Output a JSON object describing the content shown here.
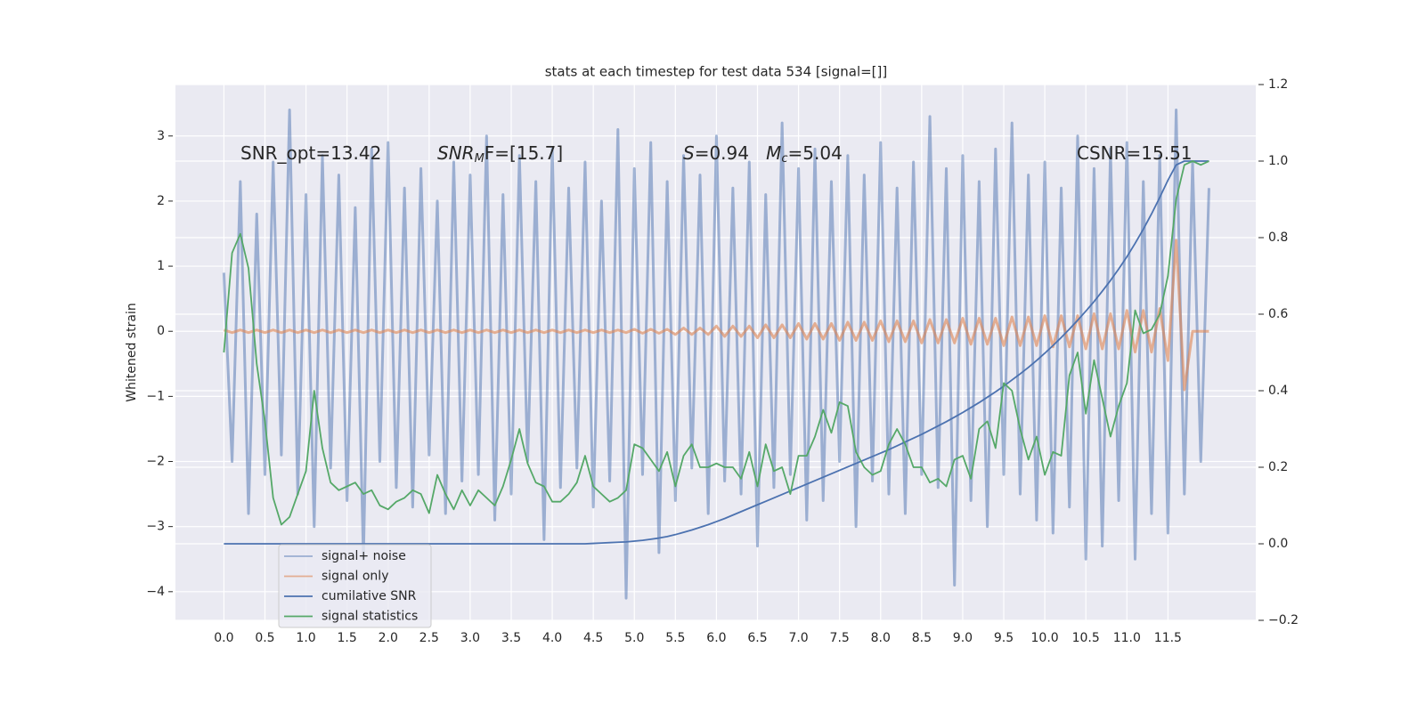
{
  "chart_data": {
    "type": "line",
    "title": "stats at each timestep for test data 534 [signal=[]]",
    "ylabel": "Whitened strain",
    "annotations": [
      [
        "SNR_opt=13.42"
      ],
      [
        "SNR",
        "M",
        "F=[15.7]"
      ],
      [
        "S",
        "=0.94   ",
        "M",
        "c",
        "=5.04"
      ],
      [
        "CSNR=15.51"
      ]
    ],
    "grid": true,
    "legend": "lower left",
    "background": "#eaeaf2",
    "xlim": [
      -0.59,
      12.57
    ],
    "ylim": [
      -4.44,
      3.79
    ],
    "y2lim": [
      -0.2,
      1.2
    ],
    "xticks": [
      {
        "value": 0,
        "label": "0.0"
      },
      0.5,
      {
        "value": 1,
        "label": "1.0"
      },
      1.5,
      {
        "value": 2,
        "label": "2.0"
      },
      2.5,
      {
        "value": 3,
        "label": "3.0"
      },
      3.5,
      {
        "value": 4,
        "label": "4.0"
      },
      4.5,
      {
        "value": 5,
        "label": "5.0"
      },
      5.5,
      {
        "value": 6,
        "label": "6.0"
      },
      6.5,
      {
        "value": 7,
        "label": "7.0"
      },
      7.5,
      {
        "value": 8,
        "label": "8.0"
      },
      8.5,
      {
        "value": 9,
        "label": "9.0"
      },
      9.5,
      {
        "value": 10,
        "label": "10.0"
      },
      10.5,
      {
        "value": 11,
        "label": "11.0"
      },
      11.5
    ],
    "yticks": [
      {
        "value": -4,
        "label": "−4"
      },
      {
        "value": -3,
        "label": "−3"
      },
      {
        "value": -2,
        "label": "−2"
      },
      {
        "value": -1,
        "label": "−1"
      },
      0,
      1,
      2,
      3
    ],
    "y2ticks": [
      {
        "value": -0.2,
        "label": "−0.2"
      },
      {
        "value": 0,
        "label": "0.0"
      },
      0.2,
      0.4,
      0.6,
      0.8,
      {
        "value": 1,
        "label": "1.0"
      },
      1.2
    ],
    "x": [
      0,
      0.1,
      0.2,
      0.3,
      0.4,
      0.5,
      0.6,
      0.7,
      0.8,
      0.9,
      1,
      1.1,
      1.2,
      1.3,
      1.4,
      1.5,
      1.6,
      1.7,
      1.8,
      1.9,
      2,
      2.1,
      2.2,
      2.3,
      2.4,
      2.5,
      2.6,
      2.7,
      2.8,
      2.9,
      3,
      3.1,
      3.2,
      3.3,
      3.4,
      3.5,
      3.6,
      3.7,
      3.8,
      3.9,
      4,
      4.1,
      4.2,
      4.3,
      4.4,
      4.5,
      4.6,
      4.7,
      4.8,
      4.9,
      5,
      5.1,
      5.2,
      5.3,
      5.4,
      5.5,
      5.6,
      5.7,
      5.8,
      5.9,
      6,
      6.1,
      6.2,
      6.3,
      6.4,
      6.5,
      6.6,
      6.7,
      6.8,
      6.9,
      7,
      7.1,
      7.2,
      7.3,
      7.4,
      7.5,
      7.6,
      7.7,
      7.8,
      7.9,
      8,
      8.1,
      8.2,
      8.3,
      8.4,
      8.5,
      8.6,
      8.7,
      8.8,
      8.9,
      9,
      9.1,
      9.2,
      9.3,
      9.4,
      9.5,
      9.6,
      9.7,
      9.8,
      9.9,
      10,
      10.1,
      10.2,
      10.3,
      10.4,
      10.5,
      10.6,
      10.7,
      10.8,
      10.9,
      11,
      11.1,
      11.2,
      11.3,
      11.4,
      11.5,
      11.6,
      11.7,
      11.8,
      11.9,
      12
    ],
    "series": [
      {
        "name": "signal+ noise",
        "color": "#4c72b0",
        "alpha": 0.5,
        "values": [
          0.9,
          -2.0,
          2.3,
          -2.8,
          1.8,
          -2.2,
          2.6,
          -1.9,
          3.4,
          -2.5,
          2.1,
          -3.0,
          2.7,
          -2.1,
          2.4,
          -2.6,
          1.9,
          -3.5,
          2.8,
          -2.0,
          2.9,
          -2.4,
          2.2,
          -2.7,
          2.5,
          -1.9,
          2.0,
          -2.8,
          2.6,
          -2.3,
          2.4,
          -2.2,
          3.0,
          -2.9,
          2.1,
          -2.5,
          2.7,
          -2.0,
          2.3,
          -3.2,
          2.8,
          -2.4,
          2.2,
          -2.1,
          2.6,
          -2.7,
          2.0,
          -2.3,
          3.1,
          -4.1,
          2.5,
          -2.2,
          2.9,
          -3.4,
          2.3,
          -2.6,
          2.7,
          -2.1,
          2.4,
          -2.8,
          3.0,
          -2.3,
          2.2,
          -2.5,
          2.6,
          -3.3,
          2.1,
          -2.4,
          3.2,
          -2.2,
          2.5,
          -2.9,
          2.8,
          -2.6,
          2.3,
          -2.0,
          2.7,
          -3.0,
          2.4,
          -2.3,
          2.9,
          -2.5,
          2.2,
          -2.8,
          2.6,
          -2.2,
          3.3,
          -2.4,
          2.5,
          -3.9,
          2.7,
          -2.6,
          2.3,
          -3.0,
          2.8,
          -2.2,
          3.2,
          -2.5,
          2.4,
          -2.9,
          2.6,
          -3.1,
          2.2,
          -2.7,
          3.0,
          -3.5,
          2.5,
          -3.3,
          2.8,
          -2.6,
          2.9,
          -3.5,
          2.3,
          -2.8,
          2.7,
          -3.1,
          3.4,
          -2.5,
          2.6,
          -2.0,
          2.2
        ]
      },
      {
        "name": "signal only",
        "color": "#dd8452",
        "alpha": 0.6,
        "values": [
          0.02,
          -0.02,
          0.02,
          -0.02,
          0.02,
          -0.02,
          0.02,
          -0.02,
          0.02,
          -0.02,
          0.02,
          -0.02,
          0.02,
          -0.02,
          0.02,
          -0.02,
          0.02,
          -0.02,
          0.02,
          -0.02,
          0.02,
          -0.02,
          0.02,
          -0.02,
          0.02,
          -0.02,
          0.02,
          -0.02,
          0.02,
          -0.02,
          0.02,
          -0.02,
          0.02,
          -0.02,
          0.02,
          -0.02,
          0.02,
          -0.02,
          0.02,
          -0.02,
          0.02,
          -0.02,
          0.02,
          -0.02,
          0.02,
          -0.02,
          0.02,
          -0.02,
          0.02,
          -0.02,
          0.03,
          -0.03,
          0.03,
          -0.03,
          0.03,
          -0.05,
          0.05,
          -0.05,
          0.05,
          -0.05,
          0.08,
          -0.08,
          0.08,
          -0.08,
          0.08,
          -0.1,
          0.1,
          -0.1,
          0.1,
          -0.1,
          0.12,
          -0.12,
          0.12,
          -0.12,
          0.12,
          -0.14,
          0.14,
          -0.14,
          0.14,
          -0.14,
          0.16,
          -0.16,
          0.16,
          -0.16,
          0.16,
          -0.18,
          0.18,
          -0.18,
          0.18,
          -0.18,
          0.2,
          -0.2,
          0.2,
          -0.2,
          0.2,
          -0.22,
          0.22,
          -0.22,
          0.22,
          -0.22,
          0.24,
          -0.24,
          0.24,
          -0.24,
          0.24,
          -0.27,
          0.27,
          -0.27,
          0.27,
          -0.27,
          0.32,
          -0.32,
          0.32,
          -0.32,
          0.35,
          -0.45,
          1.4,
          -0.9,
          0,
          0,
          0
        ]
      },
      {
        "name": "cumilative SNR",
        "color": "#4c72b0",
        "axis": "y2",
        "values": [
          0,
          0,
          0,
          0,
          0,
          0,
          0,
          0,
          0,
          0,
          0,
          0,
          0,
          0,
          0,
          0,
          0,
          0,
          0,
          0,
          0,
          0,
          0,
          0,
          0,
          0,
          0,
          0,
          0,
          0,
          0,
          0,
          0,
          0,
          0,
          0,
          0,
          0,
          0,
          0,
          0,
          0,
          0,
          0,
          0,
          0.001,
          0.002,
          0.003,
          0.004,
          0.005,
          0.007,
          0.009,
          0.012,
          0.015,
          0.019,
          0.024,
          0.03,
          0.036,
          0.043,
          0.05,
          0.058,
          0.066,
          0.075,
          0.084,
          0.093,
          0.102,
          0.111,
          0.12,
          0.129,
          0.138,
          0.147,
          0.156,
          0.165,
          0.174,
          0.183,
          0.192,
          0.201,
          0.21,
          0.219,
          0.228,
          0.237,
          0.246,
          0.256,
          0.266,
          0.276,
          0.286,
          0.297,
          0.308,
          0.319,
          0.331,
          0.343,
          0.356,
          0.369,
          0.383,
          0.397,
          0.412,
          0.428,
          0.444,
          0.461,
          0.479,
          0.498,
          0.518,
          0.539,
          0.561,
          0.584,
          0.608,
          0.633,
          0.66,
          0.688,
          0.718,
          0.75,
          0.785,
          0.822,
          0.862,
          0.905,
          0.95,
          0.99,
          1.0,
          1.0,
          1.0,
          1.0
        ]
      },
      {
        "name": "signal statistics",
        "color": "#55a868",
        "axis": "y2",
        "values": [
          0.5,
          0.76,
          0.81,
          0.72,
          0.47,
          0.32,
          0.12,
          0.05,
          0.07,
          0.13,
          0.19,
          0.4,
          0.25,
          0.16,
          0.14,
          0.15,
          0.16,
          0.13,
          0.14,
          0.1,
          0.09,
          0.11,
          0.12,
          0.14,
          0.13,
          0.08,
          0.18,
          0.13,
          0.09,
          0.14,
          0.1,
          0.14,
          0.12,
          0.1,
          0.15,
          0.22,
          0.3,
          0.21,
          0.16,
          0.15,
          0.11,
          0.11,
          0.13,
          0.16,
          0.23,
          0.15,
          0.13,
          0.11,
          0.12,
          0.14,
          0.26,
          0.25,
          0.22,
          0.19,
          0.24,
          0.15,
          0.23,
          0.26,
          0.2,
          0.2,
          0.21,
          0.2,
          0.2,
          0.17,
          0.24,
          0.15,
          0.26,
          0.19,
          0.2,
          0.13,
          0.23,
          0.23,
          0.28,
          0.35,
          0.29,
          0.37,
          0.36,
          0.24,
          0.2,
          0.18,
          0.19,
          0.26,
          0.3,
          0.26,
          0.2,
          0.2,
          0.16,
          0.17,
          0.15,
          0.22,
          0.23,
          0.17,
          0.3,
          0.32,
          0.25,
          0.42,
          0.4,
          0.3,
          0.22,
          0.28,
          0.18,
          0.24,
          0.23,
          0.44,
          0.5,
          0.34,
          0.48,
          0.38,
          0.28,
          0.36,
          0.42,
          0.61,
          0.55,
          0.56,
          0.6,
          0.7,
          0.9,
          0.99,
          1.0,
          0.99,
          1.0
        ]
      }
    ]
  }
}
